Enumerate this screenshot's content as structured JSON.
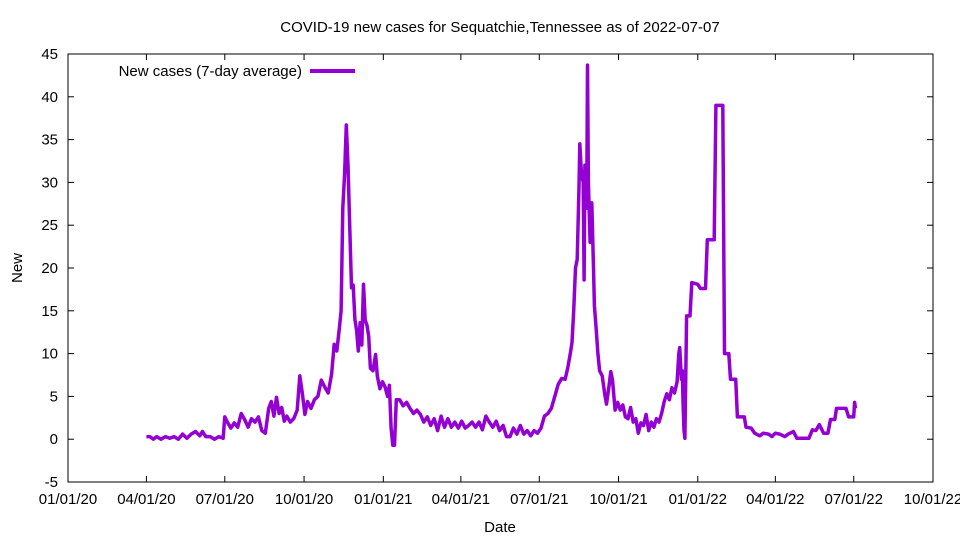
{
  "chart_data": {
    "type": "line",
    "title": "COVID-19 new cases for Sequatchie,Tennessee as of 2022-07-07",
    "xlabel": "Date",
    "ylabel": "New",
    "ylim": [
      -5,
      45
    ],
    "xlim": [
      "2020-01-01",
      "2022-10-01"
    ],
    "y_ticks": [
      -5,
      0,
      5,
      10,
      15,
      20,
      25,
      30,
      35,
      40,
      45
    ],
    "x_ticks": [
      {
        "date": "2020-01-01",
        "label": "01/01/20"
      },
      {
        "date": "2020-04-01",
        "label": "04/01/20"
      },
      {
        "date": "2020-07-01",
        "label": "07/01/20"
      },
      {
        "date": "2020-10-01",
        "label": "10/01/20"
      },
      {
        "date": "2021-01-01",
        "label": "01/01/21"
      },
      {
        "date": "2021-04-01",
        "label": "04/01/21"
      },
      {
        "date": "2021-07-01",
        "label": "07/01/21"
      },
      {
        "date": "2021-10-01",
        "label": "10/01/21"
      },
      {
        "date": "2022-01-01",
        "label": "01/01/22"
      },
      {
        "date": "2022-04-01",
        "label": "04/01/22"
      },
      {
        "date": "2022-07-01",
        "label": "07/01/22"
      },
      {
        "date": "2022-10-01",
        "label": "10/01/22"
      }
    ],
    "grid": false,
    "legend_position": "top-left",
    "series": [
      {
        "name": "New cases (7-day average)",
        "color": "#9400d3",
        "points": [
          [
            "2020-04-01",
            0.3
          ],
          [
            "2020-04-05",
            0.3
          ],
          [
            "2020-04-09",
            0.0
          ],
          [
            "2020-04-13",
            0.3
          ],
          [
            "2020-04-18",
            0.0
          ],
          [
            "2020-04-23",
            0.3
          ],
          [
            "2020-04-28",
            0.1
          ],
          [
            "2020-05-03",
            0.3
          ],
          [
            "2020-05-08",
            0.0
          ],
          [
            "2020-05-13",
            0.6
          ],
          [
            "2020-05-18",
            0.1
          ],
          [
            "2020-05-23",
            0.6
          ],
          [
            "2020-05-28",
            0.9
          ],
          [
            "2020-06-02",
            0.4
          ],
          [
            "2020-06-05",
            0.9
          ],
          [
            "2020-06-09",
            0.3
          ],
          [
            "2020-06-14",
            0.3
          ],
          [
            "2020-06-19",
            0.0
          ],
          [
            "2020-06-24",
            0.3
          ],
          [
            "2020-06-29",
            0.1
          ],
          [
            "2020-07-01",
            2.6
          ],
          [
            "2020-07-04",
            2.0
          ],
          [
            "2020-07-08",
            1.3
          ],
          [
            "2020-07-12",
            1.9
          ],
          [
            "2020-07-16",
            1.4
          ],
          [
            "2020-07-20",
            3.0
          ],
          [
            "2020-07-24",
            2.3
          ],
          [
            "2020-07-28",
            1.4
          ],
          [
            "2020-08-01",
            2.4
          ],
          [
            "2020-08-05",
            2.0
          ],
          [
            "2020-08-09",
            2.6
          ],
          [
            "2020-08-13",
            1.0
          ],
          [
            "2020-08-17",
            0.7
          ],
          [
            "2020-08-21",
            3.6
          ],
          [
            "2020-08-24",
            4.4
          ],
          [
            "2020-08-27",
            2.7
          ],
          [
            "2020-08-30",
            4.9
          ],
          [
            "2020-09-02",
            3.0
          ],
          [
            "2020-09-05",
            3.7
          ],
          [
            "2020-09-08",
            2.1
          ],
          [
            "2020-09-11",
            2.7
          ],
          [
            "2020-09-15",
            2.0
          ],
          [
            "2020-09-19",
            2.4
          ],
          [
            "2020-09-23",
            3.4
          ],
          [
            "2020-09-26",
            7.4
          ],
          [
            "2020-09-29",
            5.4
          ],
          [
            "2020-10-02",
            2.9
          ],
          [
            "2020-10-05",
            4.4
          ],
          [
            "2020-10-09",
            3.6
          ],
          [
            "2020-10-13",
            4.6
          ],
          [
            "2020-10-17",
            5.0
          ],
          [
            "2020-10-21",
            6.9
          ],
          [
            "2020-10-25",
            6.1
          ],
          [
            "2020-10-29",
            5.4
          ],
          [
            "2020-11-02",
            7.6
          ],
          [
            "2020-11-05",
            11.1
          ],
          [
            "2020-11-08",
            10.3
          ],
          [
            "2020-11-11",
            13.0
          ],
          [
            "2020-11-13",
            15.0
          ],
          [
            "2020-11-15",
            27.0
          ],
          [
            "2020-11-17",
            31.0
          ],
          [
            "2020-11-19",
            36.7
          ],
          [
            "2020-11-21",
            32.0
          ],
          [
            "2020-11-23",
            25.0
          ],
          [
            "2020-11-25",
            17.7
          ],
          [
            "2020-11-27",
            18.0
          ],
          [
            "2020-11-29",
            14.0
          ],
          [
            "2020-12-01",
            12.7
          ],
          [
            "2020-12-03",
            10.3
          ],
          [
            "2020-12-05",
            13.6
          ],
          [
            "2020-12-07",
            11.0
          ],
          [
            "2020-12-09",
            18.1
          ],
          [
            "2020-12-11",
            13.9
          ],
          [
            "2020-12-13",
            13.3
          ],
          [
            "2020-12-15",
            12.0
          ],
          [
            "2020-12-17",
            8.3
          ],
          [
            "2020-12-20",
            8.0
          ],
          [
            "2020-12-23",
            9.9
          ],
          [
            "2020-12-25",
            7.4
          ],
          [
            "2020-12-28",
            5.9
          ],
          [
            "2020-12-31",
            6.7
          ],
          [
            "2021-01-03",
            6.1
          ],
          [
            "2021-01-06",
            5.0
          ],
          [
            "2021-01-08",
            6.3
          ],
          [
            "2021-01-10",
            1.3
          ],
          [
            "2021-01-12",
            -0.7
          ],
          [
            "2021-01-14",
            -0.7
          ],
          [
            "2021-01-16",
            4.6
          ],
          [
            "2021-01-20",
            4.6
          ],
          [
            "2021-01-24",
            3.9
          ],
          [
            "2021-01-28",
            4.3
          ],
          [
            "2021-02-01",
            3.6
          ],
          [
            "2021-02-05",
            3.0
          ],
          [
            "2021-02-09",
            3.4
          ],
          [
            "2021-02-13",
            2.9
          ],
          [
            "2021-02-17",
            2.0
          ],
          [
            "2021-02-21",
            2.6
          ],
          [
            "2021-02-25",
            1.6
          ],
          [
            "2021-03-01",
            2.4
          ],
          [
            "2021-03-05",
            1.0
          ],
          [
            "2021-03-09",
            2.7
          ],
          [
            "2021-03-13",
            1.4
          ],
          [
            "2021-03-17",
            2.4
          ],
          [
            "2021-03-21",
            1.4
          ],
          [
            "2021-03-25",
            2.0
          ],
          [
            "2021-03-29",
            1.3
          ],
          [
            "2021-04-02",
            2.1
          ],
          [
            "2021-04-06",
            1.3
          ],
          [
            "2021-04-10",
            1.6
          ],
          [
            "2021-04-14",
            2.0
          ],
          [
            "2021-04-18",
            1.4
          ],
          [
            "2021-04-22",
            2.0
          ],
          [
            "2021-04-26",
            1.1
          ],
          [
            "2021-04-30",
            2.7
          ],
          [
            "2021-05-04",
            2.0
          ],
          [
            "2021-05-08",
            1.4
          ],
          [
            "2021-05-12",
            2.1
          ],
          [
            "2021-05-16",
            1.0
          ],
          [
            "2021-05-20",
            1.6
          ],
          [
            "2021-05-24",
            0.3
          ],
          [
            "2021-05-28",
            0.3
          ],
          [
            "2021-06-01",
            1.3
          ],
          [
            "2021-06-05",
            0.6
          ],
          [
            "2021-06-09",
            1.6
          ],
          [
            "2021-06-13",
            0.6
          ],
          [
            "2021-06-17",
            1.0
          ],
          [
            "2021-06-21",
            0.4
          ],
          [
            "2021-06-25",
            1.0
          ],
          [
            "2021-06-29",
            0.7
          ],
          [
            "2021-07-03",
            1.3
          ],
          [
            "2021-07-07",
            2.7
          ],
          [
            "2021-07-11",
            3.0
          ],
          [
            "2021-07-15",
            3.6
          ],
          [
            "2021-07-19",
            5.0
          ],
          [
            "2021-07-23",
            6.4
          ],
          [
            "2021-07-27",
            7.1
          ],
          [
            "2021-07-31",
            7.0
          ],
          [
            "2021-08-03",
            8.3
          ],
          [
            "2021-08-06",
            10.0
          ],
          [
            "2021-08-08",
            11.3
          ],
          [
            "2021-08-10",
            15.0
          ],
          [
            "2021-08-12",
            20.0
          ],
          [
            "2021-08-14",
            21.0
          ],
          [
            "2021-08-16",
            29.0
          ],
          [
            "2021-08-17",
            34.5
          ],
          [
            "2021-08-19",
            31.0
          ],
          [
            "2021-08-21",
            30.0
          ],
          [
            "2021-08-22",
            18.6
          ],
          [
            "2021-08-23",
            32.0
          ],
          [
            "2021-08-25",
            27.0
          ],
          [
            "2021-08-26",
            43.7
          ],
          [
            "2021-08-27",
            30.0
          ],
          [
            "2021-08-29",
            23.0
          ],
          [
            "2021-08-31",
            27.6
          ],
          [
            "2021-09-02",
            20.0
          ],
          [
            "2021-09-03",
            15.6
          ],
          [
            "2021-09-05",
            13.0
          ],
          [
            "2021-09-07",
            10.0
          ],
          [
            "2021-09-09",
            8.0
          ],
          [
            "2021-09-12",
            7.4
          ],
          [
            "2021-09-15",
            5.3
          ],
          [
            "2021-09-17",
            4.1
          ],
          [
            "2021-09-20",
            6.3
          ],
          [
            "2021-09-22",
            7.9
          ],
          [
            "2021-09-24",
            6.9
          ],
          [
            "2021-09-27",
            3.4
          ],
          [
            "2021-09-30",
            4.3
          ],
          [
            "2021-10-03",
            3.4
          ],
          [
            "2021-10-06",
            4.0
          ],
          [
            "2021-10-09",
            2.6
          ],
          [
            "2021-10-12",
            2.4
          ],
          [
            "2021-10-15",
            3.7
          ],
          [
            "2021-10-18",
            2.0
          ],
          [
            "2021-10-21",
            2.4
          ],
          [
            "2021-10-24",
            0.7
          ],
          [
            "2021-10-27",
            1.9
          ],
          [
            "2021-10-30",
            1.6
          ],
          [
            "2021-11-02",
            2.9
          ],
          [
            "2021-11-05",
            1.0
          ],
          [
            "2021-11-08",
            2.0
          ],
          [
            "2021-11-11",
            1.4
          ],
          [
            "2021-11-14",
            2.4
          ],
          [
            "2021-11-17",
            2.0
          ],
          [
            "2021-11-20",
            3.0
          ],
          [
            "2021-11-23",
            4.4
          ],
          [
            "2021-11-26",
            5.3
          ],
          [
            "2021-11-29",
            4.6
          ],
          [
            "2021-12-02",
            6.0
          ],
          [
            "2021-12-05",
            5.4
          ],
          [
            "2021-12-08",
            6.7
          ],
          [
            "2021-12-10",
            10.0
          ],
          [
            "2021-12-11",
            10.7
          ],
          [
            "2021-12-13",
            7.0
          ],
          [
            "2021-12-14",
            8.0
          ],
          [
            "2021-12-15",
            4.0
          ],
          [
            "2021-12-16",
            1.0
          ],
          [
            "2021-12-17",
            0.1
          ],
          [
            "2021-12-19",
            14.4
          ],
          [
            "2021-12-22",
            14.4
          ],
          [
            "2021-12-23",
            14.4
          ],
          [
            "2021-12-25",
            18.3
          ],
          [
            "2022-01-01",
            18.1
          ],
          [
            "2022-01-04",
            17.6
          ],
          [
            "2022-01-10",
            17.6
          ],
          [
            "2022-01-12",
            23.3
          ],
          [
            "2022-01-20",
            23.3
          ],
          [
            "2022-01-22",
            39.0
          ],
          [
            "2022-01-30",
            39.0
          ],
          [
            "2022-02-01",
            10.0
          ],
          [
            "2022-02-06",
            10.0
          ],
          [
            "2022-02-08",
            7.0
          ],
          [
            "2022-02-14",
            7.0
          ],
          [
            "2022-02-16",
            2.6
          ],
          [
            "2022-02-24",
            2.6
          ],
          [
            "2022-02-26",
            1.4
          ],
          [
            "2022-03-04",
            1.3
          ],
          [
            "2022-03-08",
            0.7
          ],
          [
            "2022-03-14",
            0.4
          ],
          [
            "2022-03-18",
            0.7
          ],
          [
            "2022-03-24",
            0.6
          ],
          [
            "2022-03-28",
            0.3
          ],
          [
            "2022-04-01",
            0.7
          ],
          [
            "2022-04-06",
            0.6
          ],
          [
            "2022-04-12",
            0.3
          ],
          [
            "2022-04-16",
            0.6
          ],
          [
            "2022-04-22",
            0.9
          ],
          [
            "2022-04-26",
            0.1
          ],
          [
            "2022-05-04",
            0.1
          ],
          [
            "2022-05-10",
            0.1
          ],
          [
            "2022-05-14",
            1.1
          ],
          [
            "2022-05-18",
            1.0
          ],
          [
            "2022-05-22",
            1.7
          ],
          [
            "2022-05-27",
            0.7
          ],
          [
            "2022-06-01",
            0.7
          ],
          [
            "2022-06-04",
            2.3
          ],
          [
            "2022-06-09",
            2.3
          ],
          [
            "2022-06-11",
            3.6
          ],
          [
            "2022-06-17",
            3.6
          ],
          [
            "2022-06-22",
            3.6
          ],
          [
            "2022-06-25",
            2.6
          ],
          [
            "2022-07-01",
            2.6
          ],
          [
            "2022-07-02",
            4.3
          ],
          [
            "2022-07-03",
            3.6
          ]
        ]
      }
    ]
  }
}
